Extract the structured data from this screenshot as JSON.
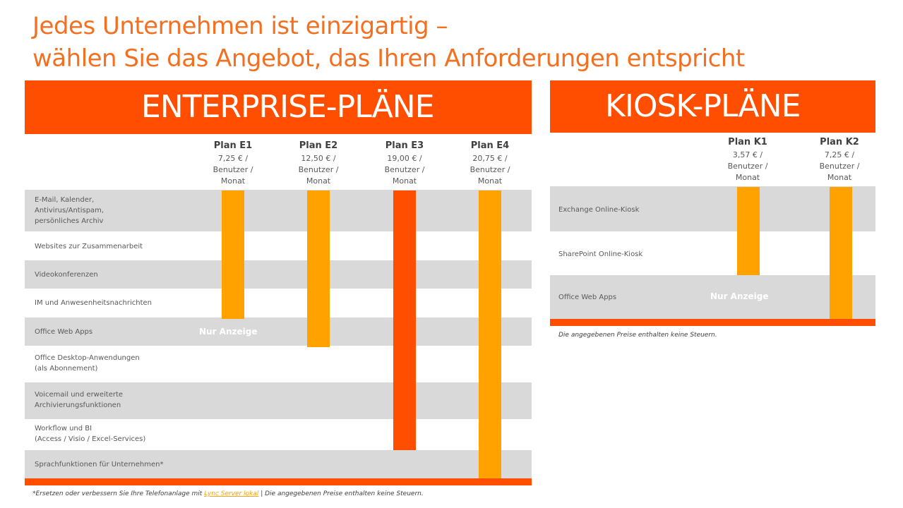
{
  "title": {
    "line1": "Jedes Unternehmen ist einzigartig –",
    "line2": "wählen Sie das Angebot, das Ihren Anforderungen entspricht"
  },
  "enterprise": {
    "banner": "ENTERPRISE-PLÄNE",
    "plans": [
      {
        "name": "Plan E1",
        "price": "7,25 € /\nBenutzer /\nMonat"
      },
      {
        "name": "Plan E2",
        "price": "12,50 € /\nBenutzer /\nMonat"
      },
      {
        "name": "Plan E3",
        "price": "19,00 € /\nBenutzer /\nMonat"
      },
      {
        "name": "Plan E4",
        "price": "20,75 € /\nBenutzer /\nMonat"
      }
    ],
    "rows": [
      "E-Mail, Kalender,\nAntivirus/Antispam,\npersönliches Archiv",
      "Websites zur Zusammenarbeit",
      "Videokonferenzen",
      "IM und Anwesenheitsnachrichten",
      "Office Web Apps",
      "Office Desktop-Anwendungen\n(als Abonnement)",
      "Voicemail und erweiterte\nArchivierungsfunktionen",
      "Workflow und BI\n(Access / Visio / Excel-Services)",
      "Sprachfunktionen für Unternehmen*"
    ],
    "view_only": "Nur Anzeige",
    "footnote": {
      "before": "*Ersetzen oder verbessern Sie Ihre Telefonanlage mit ",
      "link": "Lync Server lokal",
      "after": " | Die angegebenen Preise enthalten keine Steuern."
    }
  },
  "kiosk": {
    "banner": "KIOSK-PLÄNE",
    "plans": [
      {
        "name": "Plan K1",
        "price": "3,57 € /\nBenutzer /\nMonat"
      },
      {
        "name": "Plan K2",
        "price": "7,25 € /\nBenutzer /\nMonat"
      }
    ],
    "rows": [
      "Exchange Online-Kiosk",
      "SharePoint Online-Kiosk",
      "Office Web Apps"
    ],
    "view_only": "Nur Anzeige",
    "footnote": "Die angegebenen Preise enthalten keine Steuern."
  },
  "colors": {
    "accent_red": "#ff4e00",
    "accent_orange": "#ffa200",
    "title": "#f37021",
    "row_grey": "#d9d9d9"
  }
}
